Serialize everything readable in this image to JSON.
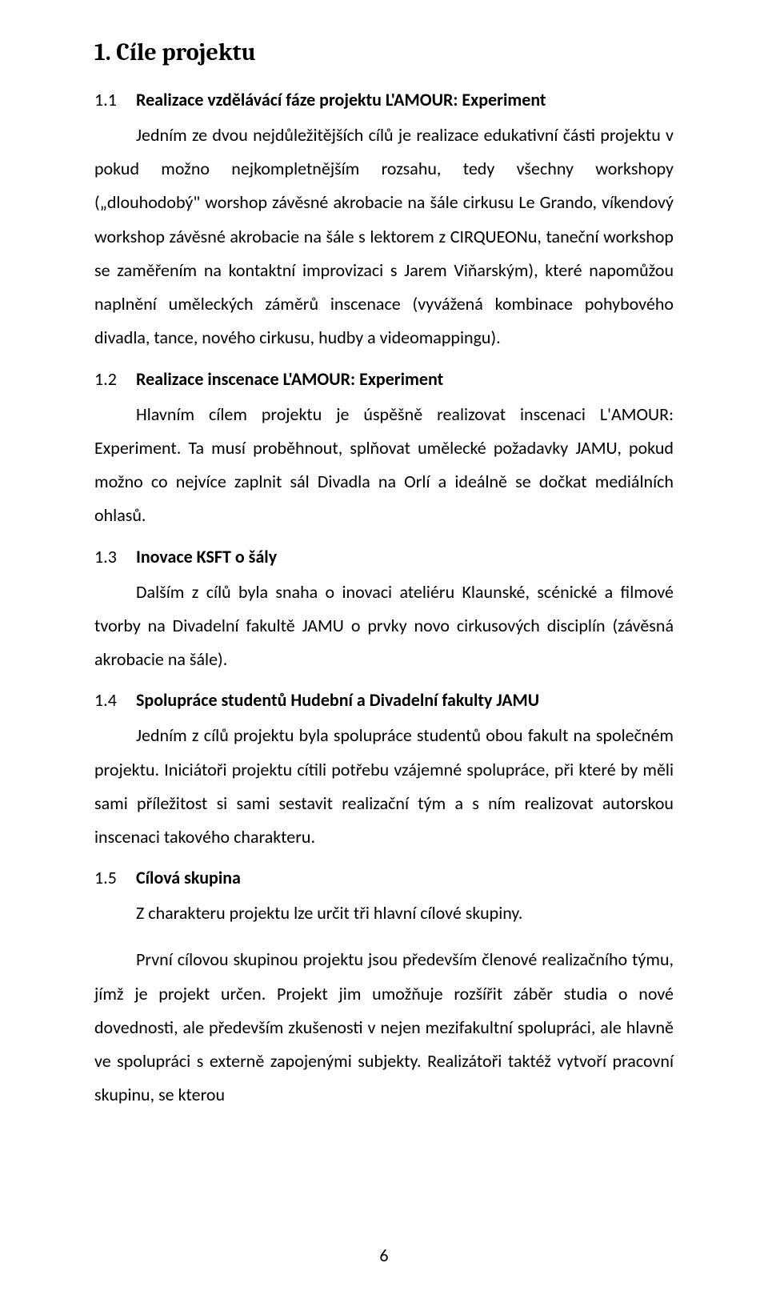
{
  "title": "1.  Cíle projektu",
  "sections": [
    {
      "num": "1.1",
      "title": "Realizace vzdělávácí fáze projektu L'AMOUR: Experiment",
      "paragraphs": [
        "Jedním ze dvou nejdůležitějších cílů je realizace edukativní části projektu v pokud možno nejkompletnějším rozsahu, tedy všechny workshopy („dlouhodobý\" worshop závěsné akrobacie na šále cirkusu Le Grando, víkendový workshop závěsné akrobacie na šále s lektorem z CIRQUEONu, taneční workshop se zaměřením na kontaktní improvizaci s Jarem Viňarským), které napomůžou naplnění uměleckých záměrů inscenace (vyvážená kombinace pohybového divadla, tance, nového cirkusu, hudby a videomappingu)."
      ]
    },
    {
      "num": "1.2",
      "title": "Realizace inscenace L'AMOUR: Experiment",
      "paragraphs": [
        "Hlavním cílem projektu je úspěšně realizovat inscenaci L'AMOUR: Experiment. Ta musí proběhnout, splňovat umělecké požadavky JAMU, pokud možno co nejvíce zaplnit sál Divadla na Orlí a ideálně se dočkat mediálních ohlasů."
      ]
    },
    {
      "num": "1.3",
      "title": "Inovace KSFT o šály",
      "paragraphs": [
        "Dalším z cílů byla snaha o inovaci ateliéru Klaunské, scénické a filmové tvorby na Divadelní fakultě JAMU o prvky novo cirkusových disciplín (závěsná akrobacie na šále)."
      ]
    },
    {
      "num": "1.4",
      "title": "Spolupráce studentů Hudební a Divadelní fakulty JAMU",
      "paragraphs": [
        "Jedním z cílů projektu byla spolupráce studentů obou fakult na společném projektu. Iniciátoři projektu cítili potřebu vzájemné spolupráce, při které by měli sami příležitost si sami sestavit realizační tým a s ním realizovat autorskou inscenaci takového charakteru."
      ]
    },
    {
      "num": "1.5",
      "title": "Cílová skupina",
      "paragraphs": [
        "Z charakteru projektu lze určit tři hlavní cílové skupiny.",
        "První cílovou skupinou projektu jsou především členové realizačního týmu, jímž je projekt určen. Projekt jim umožňuje rozšířit záběr studia o nové dovednosti, ale především zkušenosti v nejen mezifakultní spolupráci, ale hlavně ve spolupráci s externě zapojenými subjekty. Realizátoři taktéž vytvoří pracovní skupinu, se kterou"
      ]
    }
  ],
  "pageNumber": "6"
}
